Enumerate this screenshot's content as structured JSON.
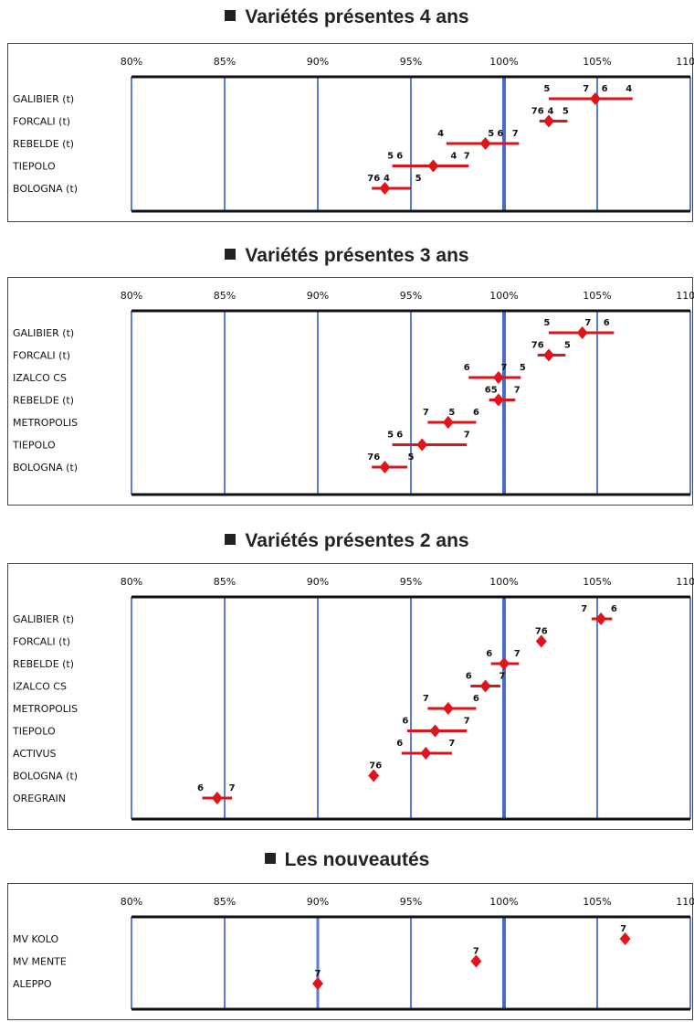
{
  "chart_data": [
    {
      "type": "scatter",
      "title": "Variétés présentes 4 ans",
      "x_ticks": [
        "80%",
        "85%",
        "90%",
        "95%",
        "100%",
        "105%",
        "110%"
      ],
      "xlim": [
        80,
        110
      ],
      "grid": true,
      "varieties": [
        {
          "name": "GALIBIER (t)",
          "value": 104.9,
          "low": 102.4,
          "high": 106.9,
          "labels": [
            {
              "text": "5",
              "x": 102.3
            },
            {
              "text": "7",
              "x": 104.4
            },
            {
              "text": "6",
              "x": 105.4
            },
            {
              "text": "4",
              "x": 106.7
            }
          ]
        },
        {
          "name": "FORCALI (t)",
          "value": 102.4,
          "low": 101.9,
          "high": 103.4,
          "labels": [
            {
              "text": "76",
              "x": 101.8
            },
            {
              "text": "4",
              "x": 102.5
            },
            {
              "text": "5",
              "x": 103.3
            }
          ]
        },
        {
          "name": "REBELDE (t)",
          "value": 99.0,
          "low": 96.9,
          "high": 100.8,
          "labels": [
            {
              "text": "4",
              "x": 96.6
            },
            {
              "text": "5",
              "x": 99.3
            },
            {
              "text": "6",
              "x": 99.8
            },
            {
              "text": "7",
              "x": 100.6
            }
          ]
        },
        {
          "name": "TIEPOLO",
          "value": 96.2,
          "low": 94.0,
          "high": 98.1,
          "labels": [
            {
              "text": "5",
              "x": 93.9
            },
            {
              "text": "6",
              "x": 94.4
            },
            {
              "text": "4",
              "x": 97.3
            },
            {
              "text": "7",
              "x": 98.0
            }
          ]
        },
        {
          "name": "BOLOGNA (t)",
          "value": 93.6,
          "low": 92.9,
          "high": 95.0,
          "labels": [
            {
              "text": "76",
              "x": 93.0
            },
            {
              "text": "4",
              "x": 93.7
            },
            {
              "text": "5",
              "x": 95.4
            }
          ]
        }
      ]
    },
    {
      "type": "scatter",
      "title": "Variétés présentes 3 ans",
      "x_ticks": [
        "80%",
        "85%",
        "90%",
        "95%",
        "100%",
        "105%",
        "110%"
      ],
      "xlim": [
        80,
        110
      ],
      "grid": true,
      "varieties": [
        {
          "name": "GALIBIER (t)",
          "value": 104.2,
          "low": 102.4,
          "high": 105.9,
          "labels": [
            {
              "text": "5",
              "x": 102.3
            },
            {
              "text": "7",
              "x": 104.5
            },
            {
              "text": "6",
              "x": 105.5
            }
          ]
        },
        {
          "name": "FORCALI (t)",
          "value": 102.4,
          "low": 101.8,
          "high": 103.3,
          "labels": [
            {
              "text": "76",
              "x": 101.8
            },
            {
              "text": "5",
              "x": 103.4
            }
          ]
        },
        {
          "name": "IZALCO CS",
          "value": 99.7,
          "low": 98.1,
          "high": 100.9,
          "labels": [
            {
              "text": "6",
              "x": 98.0
            },
            {
              "text": "7",
              "x": 100.0
            },
            {
              "text": "5",
              "x": 101.0
            }
          ]
        },
        {
          "name": "REBELDE (t)",
          "value": 99.7,
          "low": 99.2,
          "high": 100.6,
          "labels": [
            {
              "text": "65",
              "x": 99.3
            },
            {
              "text": "7",
              "x": 100.7
            }
          ]
        },
        {
          "name": "METROPOLIS",
          "value": 97.0,
          "low": 95.9,
          "high": 98.5,
          "labels": [
            {
              "text": "7",
              "x": 95.8
            },
            {
              "text": "5",
              "x": 97.2
            },
            {
              "text": "6",
              "x": 98.5
            }
          ]
        },
        {
          "name": "TIEPOLO",
          "value": 95.6,
          "low": 94.0,
          "high": 98.0,
          "labels": [
            {
              "text": "5",
              "x": 93.9
            },
            {
              "text": "6",
              "x": 94.4
            },
            {
              "text": "7",
              "x": 98.0
            }
          ]
        },
        {
          "name": "BOLOGNA (t)",
          "value": 93.6,
          "low": 92.9,
          "high": 94.8,
          "labels": [
            {
              "text": "76",
              "x": 93.0
            },
            {
              "text": "5",
              "x": 95.0
            }
          ]
        }
      ]
    },
    {
      "type": "scatter",
      "title": "Variétés présentes 2 ans",
      "x_ticks": [
        "80%",
        "85%",
        "90%",
        "95%",
        "100%",
        "105%",
        "110%"
      ],
      "xlim": [
        80,
        110
      ],
      "grid": true,
      "varieties": [
        {
          "name": "GALIBIER (t)",
          "value": 105.2,
          "low": 104.7,
          "high": 105.8,
          "labels": [
            {
              "text": "7",
              "x": 104.3
            },
            {
              "text": "6",
              "x": 105.9
            }
          ]
        },
        {
          "name": "FORCALI (t)",
          "value": 102.0,
          "low": 102.0,
          "high": 102.0,
          "labels": [
            {
              "text": "76",
              "x": 102.0
            }
          ]
        },
        {
          "name": "REBELDE (t)",
          "value": 100.0,
          "low": 99.3,
          "high": 100.8,
          "labels": [
            {
              "text": "6",
              "x": 99.2
            },
            {
              "text": "7",
              "x": 100.7
            }
          ]
        },
        {
          "name": "IZALCO CS",
          "value": 99.0,
          "low": 98.2,
          "high": 99.8,
          "labels": [
            {
              "text": "6",
              "x": 98.1
            },
            {
              "text": "7",
              "x": 99.9
            }
          ]
        },
        {
          "name": "METROPOLIS",
          "value": 97.0,
          "low": 95.9,
          "high": 98.5,
          "labels": [
            {
              "text": "7",
              "x": 95.8
            },
            {
              "text": "6",
              "x": 98.5
            }
          ]
        },
        {
          "name": "TIEPOLO",
          "value": 96.3,
          "low": 94.8,
          "high": 98.0,
          "labels": [
            {
              "text": "6",
              "x": 94.7
            },
            {
              "text": "7",
              "x": 98.0
            }
          ]
        },
        {
          "name": "ACTIVUS",
          "value": 95.8,
          "low": 94.5,
          "high": 97.2,
          "labels": [
            {
              "text": "6",
              "x": 94.4
            },
            {
              "text": "7",
              "x": 97.2
            }
          ]
        },
        {
          "name": "BOLOGNA (t)",
          "value": 93.0,
          "low": 93.0,
          "high": 93.0,
          "labels": [
            {
              "text": "76",
              "x": 93.1
            }
          ]
        },
        {
          "name": "OREGRAIN",
          "value": 84.6,
          "low": 83.8,
          "high": 85.4,
          "labels": [
            {
              "text": "6",
              "x": 83.7
            },
            {
              "text": "7",
              "x": 85.4
            }
          ]
        }
      ]
    },
    {
      "type": "scatter",
      "title": "Les nouveautés",
      "x_ticks": [
        "80%",
        "85%",
        "90%",
        "95%",
        "100%",
        "105%",
        "110%"
      ],
      "xlim": [
        80,
        110
      ],
      "grid": true,
      "varieties": [
        {
          "name": "MV KOLO",
          "value": 106.5,
          "low": 106.5,
          "high": 106.5,
          "labels": [
            {
              "text": "7",
              "x": 106.4
            }
          ]
        },
        {
          "name": "MV MENTE",
          "value": 98.5,
          "low": 98.5,
          "high": 98.5,
          "labels": [
            {
              "text": "7",
              "x": 98.5
            }
          ]
        },
        {
          "name": "ALEPPO",
          "value": 90.0,
          "low": 90.0,
          "high": 90.0,
          "labels": [
            {
              "text": "7",
              "x": 90.0
            }
          ]
        }
      ]
    }
  ]
}
